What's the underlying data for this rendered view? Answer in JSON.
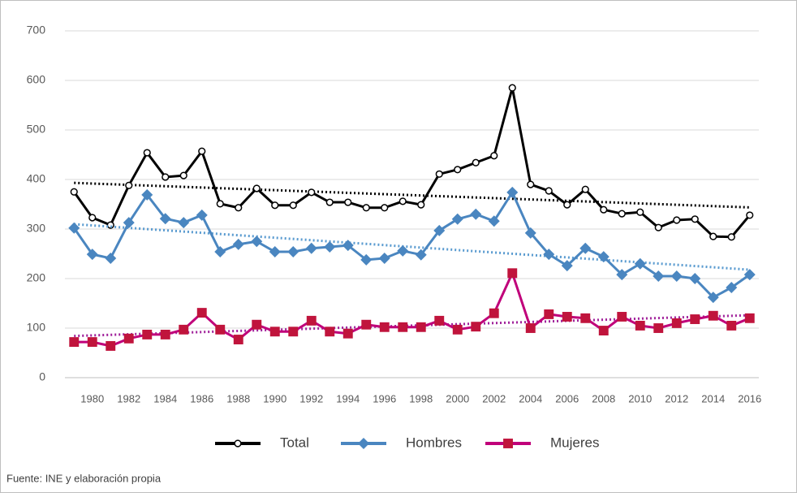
{
  "chart_data": {
    "type": "line",
    "categories": [
      null,
      "1980",
      null,
      "1982",
      null,
      "1984",
      null,
      "1986",
      null,
      "1988",
      null,
      "1990",
      null,
      "1992",
      null,
      "1994",
      null,
      "1996",
      null,
      "1998",
      null,
      "2000",
      null,
      "2002",
      null,
      "2004",
      null,
      "2006",
      null,
      "2008",
      null,
      "2010",
      null,
      "2012",
      null,
      "2014",
      null,
      "2016"
    ],
    "series": [
      {
        "name": "Total",
        "color": "#000000",
        "marker": "circle",
        "marker_color": "#ffffff",
        "values": [
          375,
          323,
          308,
          388,
          454,
          405,
          408,
          457,
          351,
          343,
          382,
          348,
          348,
          374,
          354,
          354,
          343,
          343,
          356,
          349,
          411,
          420,
          434,
          448,
          585,
          390,
          377,
          349,
          380,
          339,
          331,
          334,
          303,
          318,
          320,
          285,
          284,
          328
        ]
      },
      {
        "name": "Hombres",
        "color": "#4a86c0",
        "marker": "diamond",
        "marker_color": "#4a86c0",
        "values": [
          302,
          249,
          241,
          313,
          369,
          321,
          313,
          328,
          254,
          269,
          275,
          254,
          254,
          261,
          264,
          267,
          238,
          241,
          256,
          248,
          297,
          320,
          330,
          316,
          374,
          292,
          249,
          226,
          261,
          244,
          208,
          230,
          205,
          205,
          200,
          162,
          182,
          208
        ]
      },
      {
        "name": "Mujeres",
        "color": "#c0007a",
        "marker": "square",
        "marker_color": "#c0143c",
        "values": [
          72,
          72,
          64,
          79,
          87,
          87,
          97,
          131,
          97,
          77,
          107,
          93,
          93,
          115,
          93,
          89,
          107,
          102,
          102,
          102,
          115,
          97,
          103,
          130,
          211,
          100,
          128,
          123,
          120,
          95,
          123,
          105,
          100,
          110,
          118,
          125,
          105,
          120
        ]
      }
    ],
    "ylim": [
      0,
      700
    ],
    "yticks": [
      0,
      100,
      200,
      300,
      400,
      500,
      600,
      700
    ],
    "grid": true,
    "trendline": true,
    "legend": "bottom",
    "source": "Fuente:  INE y elaboración propia"
  }
}
